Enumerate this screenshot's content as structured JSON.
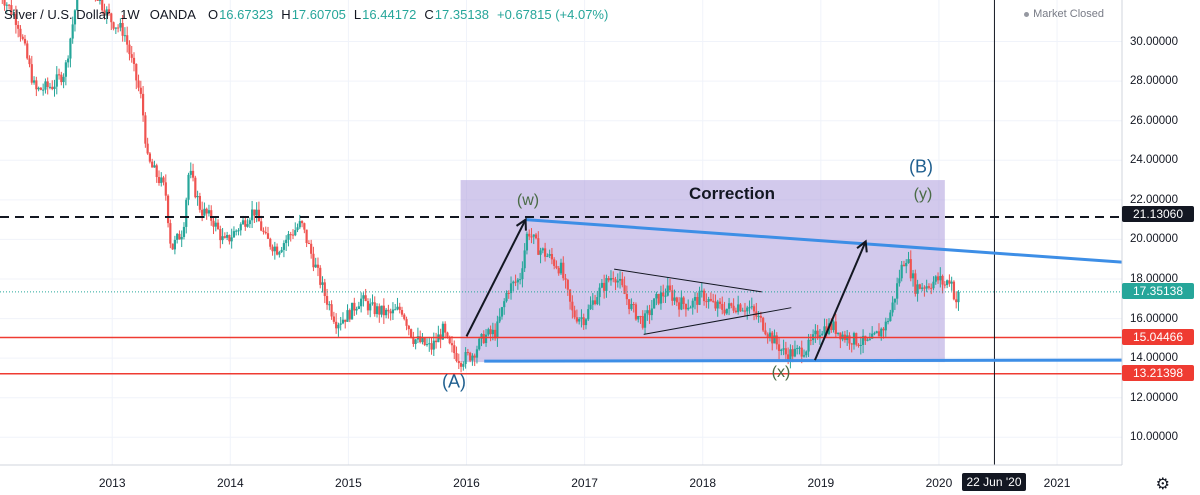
{
  "header": {
    "symbol": "Silver / U.S. Dollar",
    "timeframe": "1W",
    "source": "OANDA",
    "open_label": "O",
    "open": "16.67323",
    "high_label": "H",
    "high": "17.60705",
    "low_label": "L",
    "low": "16.44172",
    "close_label": "C",
    "close": "17.35138",
    "change": "+0.67815 (+4.07%)"
  },
  "status": {
    "market": "Market Closed"
  },
  "price_labels": {
    "resistance": "21.13060",
    "current": "17.35138",
    "support_high": "15.04466",
    "support_low": "13.21398"
  },
  "crosshair_date": "22 Jun '20",
  "annotations": {
    "correction": "Correction",
    "w": "(w)",
    "x": "(x)",
    "y": "(y)",
    "A": "(A)",
    "B": "(B)"
  },
  "colors": {
    "up": "#26a69a",
    "down": "#ef5350",
    "trendline": "#3d8ee6",
    "support": "#ef3b32",
    "box": "#b4a5e0",
    "wave_label": "#1f5f8f",
    "wave_inner": "#4a6b46"
  },
  "chart_data": {
    "type": "candlestick",
    "title": "Silver / U.S. Dollar",
    "interval": "1W",
    "x_ticks": [
      "2013",
      "2014",
      "2015",
      "2016",
      "2017",
      "2018",
      "2019",
      "2020",
      "2021"
    ],
    "y_ticks": [
      "30.00000",
      "28.00000",
      "26.00000",
      "24.00000",
      "22.00000",
      "20.00000",
      "18.00000",
      "16.00000",
      "14.00000",
      "12.00000",
      "10.00000"
    ],
    "ylim": [
      8.6,
      32.1
    ],
    "xlim": [
      2012.05,
      2021.55
    ],
    "anchor_points": [
      [
        2012.05,
        32.5
      ],
      [
        2012.2,
        31.0
      ],
      [
        2012.35,
        27.5
      ],
      [
        2012.5,
        27.8
      ],
      [
        2012.6,
        28.5
      ],
      [
        2012.75,
        34.0
      ],
      [
        2012.9,
        32.0
      ],
      [
        2013.0,
        31.0
      ],
      [
        2013.1,
        30.5
      ],
      [
        2013.25,
        27.0
      ],
      [
        2013.3,
        24.0
      ],
      [
        2013.45,
        22.5
      ],
      [
        2013.5,
        19.5
      ],
      [
        2013.6,
        20.5
      ],
      [
        2013.65,
        23.5
      ],
      [
        2013.75,
        21.5
      ],
      [
        2013.85,
        21.0
      ],
      [
        2013.95,
        19.8
      ],
      [
        2014.1,
        20.8
      ],
      [
        2014.2,
        21.5
      ],
      [
        2014.3,
        20.0
      ],
      [
        2014.4,
        19.5
      ],
      [
        2014.5,
        20.2
      ],
      [
        2014.6,
        20.8
      ],
      [
        2014.7,
        19.0
      ],
      [
        2014.8,
        17.2
      ],
      [
        2014.9,
        15.8
      ],
      [
        2015.0,
        16.2
      ],
      [
        2015.1,
        17.0
      ],
      [
        2015.2,
        16.5
      ],
      [
        2015.35,
        16.2
      ],
      [
        2015.45,
        16.5
      ],
      [
        2015.55,
        15.0
      ],
      [
        2015.7,
        14.5
      ],
      [
        2015.8,
        15.4
      ],
      [
        2015.85,
        14.6
      ],
      [
        2015.95,
        13.9
      ],
      [
        2016.05,
        14.2
      ],
      [
        2016.15,
        15.1
      ],
      [
        2016.25,
        15.3
      ],
      [
        2016.35,
        17.5
      ],
      [
        2016.45,
        18.0
      ],
      [
        2016.52,
        20.5
      ],
      [
        2016.6,
        19.6
      ],
      [
        2016.7,
        19.1
      ],
      [
        2016.8,
        18.5
      ],
      [
        2016.9,
        16.2
      ],
      [
        2017.0,
        16.0
      ],
      [
        2017.1,
        17.2
      ],
      [
        2017.25,
        18.3
      ],
      [
        2017.4,
        16.5
      ],
      [
        2017.5,
        15.8
      ],
      [
        2017.6,
        16.9
      ],
      [
        2017.7,
        17.4
      ],
      [
        2017.8,
        16.8
      ],
      [
        2017.9,
        16.7
      ],
      [
        2018.0,
        17.2
      ],
      [
        2018.1,
        16.6
      ],
      [
        2018.2,
        16.5
      ],
      [
        2018.3,
        16.7
      ],
      [
        2018.4,
        16.5
      ],
      [
        2018.5,
        15.8
      ],
      [
        2018.6,
        14.9
      ],
      [
        2018.7,
        14.2
      ],
      [
        2018.8,
        14.3
      ],
      [
        2018.9,
        14.6
      ],
      [
        2019.0,
        15.5
      ],
      [
        2019.1,
        15.6
      ],
      [
        2019.2,
        15.1
      ],
      [
        2019.3,
        14.9
      ],
      [
        2019.4,
        14.7
      ],
      [
        2019.45,
        15.0
      ],
      [
        2019.55,
        15.7
      ],
      [
        2019.6,
        16.5
      ],
      [
        2019.68,
        18.5
      ],
      [
        2019.72,
        19.2
      ],
      [
        2019.8,
        17.6
      ],
      [
        2019.9,
        17.7
      ],
      [
        2020.0,
        18.0
      ],
      [
        2020.05,
        17.7
      ],
      [
        2020.1,
        18.1
      ],
      [
        2020.14,
        16.8
      ],
      [
        2020.18,
        17.35
      ]
    ],
    "horizontal_levels": {
      "resistance_dashed": 21.1306,
      "current_dotted": 17.35138,
      "support_red_high": 15.04466,
      "support_red_low": 13.21398,
      "crosshair_x": 2020.47
    },
    "trendlines": [
      {
        "from": [
          2016.5,
          21.0
        ],
        "to": [
          2021.55,
          18.85
        ],
        "color": "blue"
      },
      {
        "from": [
          2016.15,
          13.85
        ],
        "to": [
          2021.55,
          13.9
        ],
        "color": "blue"
      }
    ],
    "correction_box": {
      "x0": 2015.95,
      "x1": 2020.05,
      "y0": 13.8,
      "y1": 23.0
    },
    "triangle": {
      "upper": [
        [
          2017.25,
          18.5
        ],
        [
          2018.5,
          17.35
        ]
      ],
      "lower": [
        [
          2017.5,
          15.2
        ],
        [
          2018.75,
          16.55
        ]
      ]
    },
    "arrows": [
      {
        "from": [
          2016.0,
          15.1
        ],
        "to": [
          2016.5,
          21.0
        ]
      },
      {
        "from": [
          2018.95,
          13.9
        ],
        "to": [
          2019.38,
          19.9
        ]
      }
    ]
  }
}
